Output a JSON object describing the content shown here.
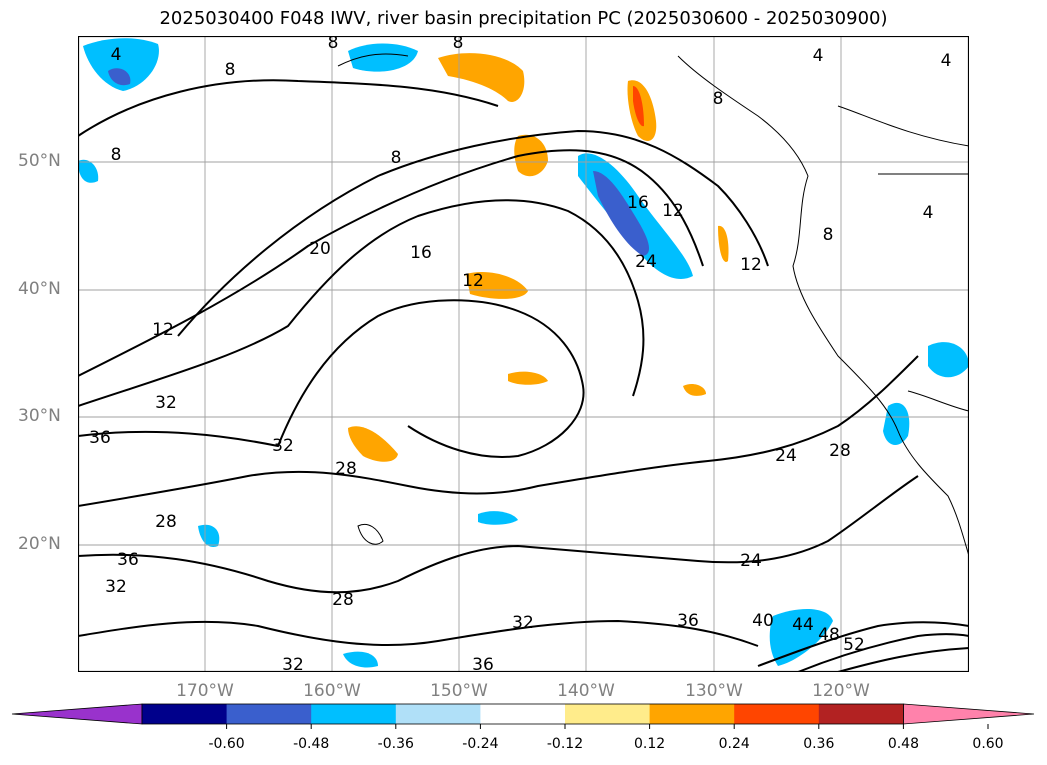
{
  "title": "2025030400 F048 IWV, river basin precipitation PC (2025030600 - 2025030900)",
  "lat_ticks": [
    "50°N",
    "40°N",
    "30°N",
    "20°N"
  ],
  "lon_ticks": [
    "170°W",
    "160°W",
    "150°W",
    "140°W",
    "130°W",
    "120°W"
  ],
  "contour_labels": [
    "4",
    "8",
    "8",
    "8",
    "8",
    "8",
    "8",
    "8",
    "4",
    "4",
    "4",
    "12",
    "12",
    "12",
    "12",
    "16",
    "16",
    "20",
    "24",
    "24",
    "24",
    "28",
    "28",
    "28",
    "28",
    "32",
    "32",
    "32",
    "32",
    "32",
    "36",
    "36",
    "36",
    "36",
    "40",
    "44",
    "48",
    "52"
  ],
  "colorbar": {
    "ticks": [
      "-0.60",
      "-0.48",
      "-0.36",
      "-0.24",
      "-0.12",
      "0.12",
      "0.24",
      "0.36",
      "0.48",
      "0.60"
    ],
    "colors": [
      "#9932cc",
      "#00008b",
      "#3a5fcd",
      "#00bfff",
      "#b0e0f8",
      "#ffffff",
      "#ffec8b",
      "#ffa500",
      "#ff4500",
      "#b22222",
      "#ff82ab"
    ]
  }
}
